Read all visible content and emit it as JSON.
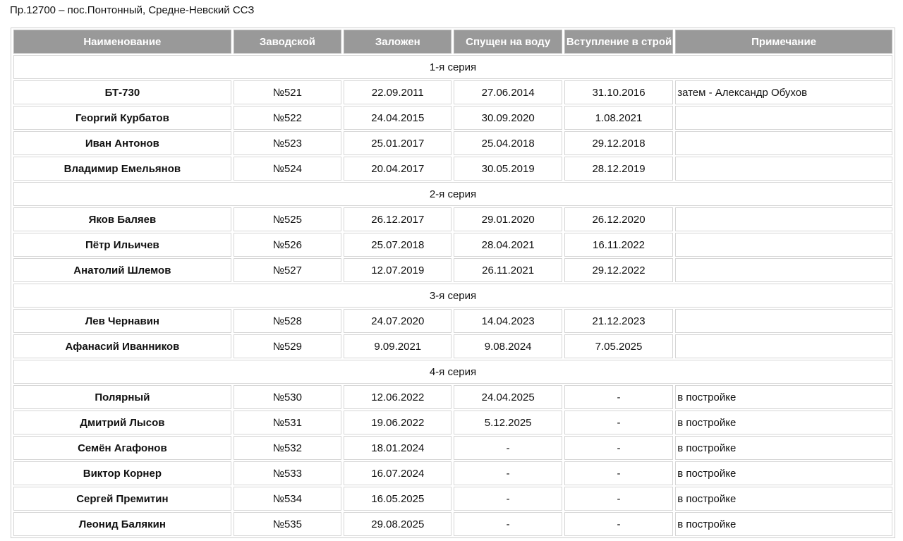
{
  "title": "Пр.12700 – пос.Понтонный, Средне-Невский ССЗ",
  "colors": {
    "header_bg": "#999999",
    "header_text": "#ffffff",
    "border": "#d6d6d6"
  },
  "columns": [
    "Наименование",
    "Заводской",
    "Заложен",
    "Спущен на воду",
    "Вступление в строй",
    "Примечание"
  ],
  "groups": [
    {
      "label": "1-я серия",
      "rows": [
        [
          "БТ-730",
          "№521",
          "22.09.2011",
          "27.06.2014",
          "31.10.2016",
          "затем - Александр Обухов"
        ],
        [
          "Георгий Курбатов",
          "№522",
          "24.04.2015",
          "30.09.2020",
          "1.08.2021",
          ""
        ],
        [
          "Иван Антонов",
          "№523",
          "25.01.2017",
          "25.04.2018",
          "29.12.2018",
          ""
        ],
        [
          "Владимир Емельянов",
          "№524",
          "20.04.2017",
          "30.05.2019",
          "28.12.2019",
          ""
        ]
      ]
    },
    {
      "label": "2-я серия",
      "rows": [
        [
          "Яков Баляев",
          "№525",
          "26.12.2017",
          "29.01.2020",
          "26.12.2020",
          ""
        ],
        [
          "Пётр Ильичев",
          "№526",
          "25.07.2018",
          "28.04.2021",
          "16.11.2022",
          ""
        ],
        [
          "Анатолий Шлемов",
          "№527",
          "12.07.2019",
          "26.11.2021",
          "29.12.2022",
          ""
        ]
      ]
    },
    {
      "label": "3-я серия",
      "rows": [
        [
          "Лев Чернавин",
          "№528",
          "24.07.2020",
          "14.04.2023",
          "21.12.2023",
          ""
        ],
        [
          "Афанасий Иванников",
          "№529",
          "9.09.2021",
          "9.08.2024",
          "7.05.2025",
          ""
        ]
      ]
    },
    {
      "label": "4-я серия",
      "rows": [
        [
          "Полярный",
          "№530",
          "12.06.2022",
          "24.04.2025",
          "-",
          "в постройке"
        ],
        [
          "Дмитрий Лысов",
          "№531",
          "19.06.2022",
          "5.12.2025",
          "-",
          "в постройке"
        ],
        [
          "Семён Агафонов",
          "№532",
          "18.01.2024",
          "-",
          "-",
          "в постройке"
        ],
        [
          "Виктор Корнер",
          "№533",
          "16.07.2024",
          "-",
          "-",
          "в постройке"
        ],
        [
          "Сергей Премитин",
          "№534",
          "16.05.2025",
          "-",
          "-",
          "в постройке"
        ],
        [
          "Леонид Балякин",
          "№535",
          "29.08.2025",
          "-",
          "-",
          "в постройке"
        ]
      ]
    }
  ]
}
